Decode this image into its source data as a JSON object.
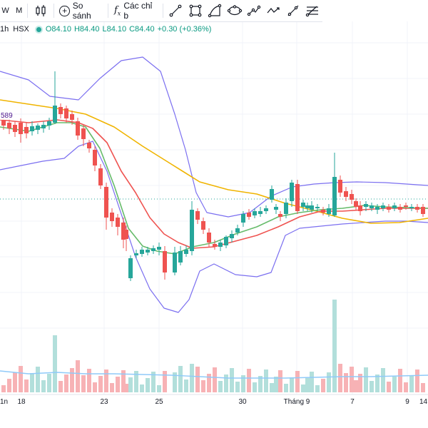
{
  "toolbar": {
    "interval_1": "W",
    "interval_2": "M",
    "chart_type_icon": "candles-icon",
    "compare_label": "So sánh",
    "indicators_label": "Các chỉ b",
    "indicators_icon": "fx-icon",
    "drawing_tools": [
      "trend-line-icon",
      "rectangle-icon",
      "arc-icon",
      "ellipse-icon",
      "path-icon",
      "polyline-icon",
      "ray-icon",
      "fib-icon"
    ]
  },
  "legend": {
    "interval": "1h",
    "exchange": "HSX",
    "open": "O84.10",
    "high": "H84.40",
    "low": "L84.10",
    "close": "C84.40",
    "change": "+0.30 (+0.36%)",
    "up_color": "#089981"
  },
  "overlay_label": "589",
  "x_axis": {
    "left_tag": "1n",
    "ticks": [
      "18",
      "23",
      "25",
      "30",
      "Tháng 9",
      "7",
      "9"
    ],
    "right_tag": "14:"
  },
  "colors": {
    "up": "#26a69a",
    "down": "#ef5350",
    "volume_up": "#b2dfdb",
    "volume_down": "#f7b2b5",
    "band": "#7b6ff0",
    "ma_fast": "#66bb6a",
    "ma_mid": "#ef5350",
    "ma_slow": "#f0b400",
    "volume_ma": "#90caf9"
  }
}
